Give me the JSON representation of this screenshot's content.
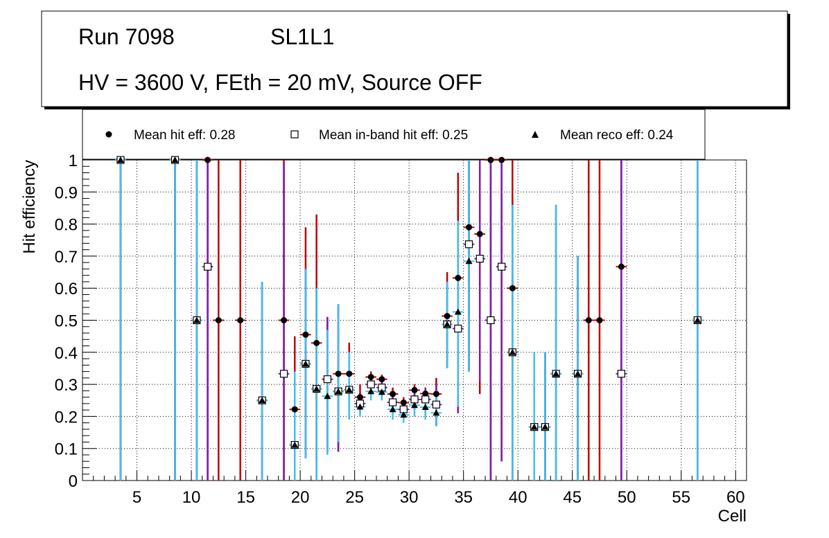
{
  "title_box": {
    "run_label": "Run 7098",
    "layer_label": "SL1L1",
    "conditions": "HV = 3600 V, FEth = 20 mV, Source OFF"
  },
  "legend": {
    "hit": "Mean hit  eff: 0.28",
    "inband": "Mean in-band hit eff: 0.25",
    "reco": "Mean reco eff: 0.24"
  },
  "colors": {
    "hit_error": "#c00000",
    "inband_error": "#7a1fb0",
    "reco_error": "#3dc1ef"
  },
  "chart_data": {
    "type": "scatter",
    "xlabel": "Cell",
    "ylabel": "Hit efficiency",
    "xlim": [
      0,
      61
    ],
    "ylim": [
      0,
      1
    ],
    "xticks": [
      5,
      10,
      15,
      20,
      25,
      30,
      35,
      40,
      45,
      50,
      55,
      60
    ],
    "yticks": [
      0,
      0.1,
      0.2,
      0.3,
      0.4,
      0.5,
      0.6,
      0.7,
      0.8,
      0.9,
      1
    ],
    "ytick_labels": [
      "0",
      "0.1",
      "0.2",
      "0.3",
      "0.4",
      "0.5",
      "0.6",
      "0.7",
      "0.8",
      "0.9",
      "1"
    ],
    "grid": true,
    "series": [
      {
        "name": "Mean hit  eff: 0.28",
        "marker": "circle",
        "points": [
          {
            "x": 3.5,
            "y": 1.0,
            "lo": 0.0,
            "hi": 1.0
          },
          {
            "x": 8.5,
            "y": 1.0,
            "lo": 0.0,
            "hi": 1.0
          },
          {
            "x": 10.5,
            "y": 0.5,
            "lo": 0.0,
            "hi": 1.0
          },
          {
            "x": 11.5,
            "y": 1.0,
            "lo": 0.0,
            "hi": 1.0
          },
          {
            "x": 12.5,
            "y": 0.5,
            "lo": 0.0,
            "hi": 1.0
          },
          {
            "x": 14.5,
            "y": 0.5,
            "lo": 0.0,
            "hi": 1.0
          },
          {
            "x": 16.5,
            "y": 0.25,
            "lo": 0.0,
            "hi": 0.62
          },
          {
            "x": 18.5,
            "y": 0.5,
            "lo": 0.0,
            "hi": 1.0
          },
          {
            "x": 19.5,
            "y": 0.222,
            "lo": 0.0,
            "hi": 0.45
          },
          {
            "x": 20.5,
            "y": 0.455,
            "lo": 0.07,
            "hi": 0.79
          },
          {
            "x": 21.5,
            "y": 0.429,
            "lo": 0.06,
            "hi": 0.83
          },
          {
            "x": 22.5,
            "y": 0.316,
            "lo": 0.09,
            "hi": 0.51
          },
          {
            "x": 23.5,
            "y": 0.333,
            "lo": 0.09,
            "hi": 0.55
          },
          {
            "x": 24.5,
            "y": 0.333,
            "lo": 0.19,
            "hi": 0.43
          },
          {
            "x": 25.5,
            "y": 0.26,
            "lo": 0.22,
            "hi": 0.3
          },
          {
            "x": 26.5,
            "y": 0.323,
            "lo": 0.28,
            "hi": 0.34
          },
          {
            "x": 27.5,
            "y": 0.316,
            "lo": 0.28,
            "hi": 0.33
          },
          {
            "x": 28.5,
            "y": 0.27,
            "lo": 0.22,
            "hi": 0.29
          },
          {
            "x": 29.5,
            "y": 0.243,
            "lo": 0.2,
            "hi": 0.26
          },
          {
            "x": 30.5,
            "y": 0.282,
            "lo": 0.23,
            "hi": 0.3
          },
          {
            "x": 31.5,
            "y": 0.271,
            "lo": 0.21,
            "hi": 0.29
          },
          {
            "x": 32.5,
            "y": 0.27,
            "lo": 0.17,
            "hi": 0.32
          },
          {
            "x": 33.5,
            "y": 0.513,
            "lo": 0.35,
            "hi": 0.65
          },
          {
            "x": 34.5,
            "y": 0.632,
            "lo": 0.21,
            "hi": 0.96
          },
          {
            "x": 35.5,
            "y": 0.79,
            "lo": 0.34,
            "hi": 1.0
          },
          {
            "x": 36.5,
            "y": 0.769,
            "lo": 0.27,
            "hi": 1.0
          },
          {
            "x": 37.5,
            "y": 1.0,
            "lo": 0.0,
            "hi": 1.0
          },
          {
            "x": 38.5,
            "y": 1.0,
            "lo": 0.06,
            "hi": 1.0
          },
          {
            "x": 39.5,
            "y": 0.6,
            "lo": 0.0,
            "hi": 1.0
          },
          {
            "x": 41.5,
            "y": 0.167,
            "lo": 0.0,
            "hi": 0.4
          },
          {
            "x": 42.5,
            "y": 0.167,
            "lo": 0.0,
            "hi": 0.4
          },
          {
            "x": 43.5,
            "y": 0.333,
            "lo": 0.0,
            "hi": 0.86
          },
          {
            "x": 45.5,
            "y": 0.333,
            "lo": 0.0,
            "hi": 0.7
          },
          {
            "x": 46.5,
            "y": 0.5,
            "lo": 0.0,
            "hi": 1.0
          },
          {
            "x": 47.5,
            "y": 0.5,
            "lo": 0.0,
            "hi": 1.0
          },
          {
            "x": 49.5,
            "y": 0.667,
            "lo": 0.0,
            "hi": 1.0
          },
          {
            "x": 56.5,
            "y": 0.5,
            "lo": 0.0,
            "hi": 1.0
          }
        ]
      },
      {
        "name": "Mean in-band hit eff: 0.25",
        "marker": "open-square",
        "points": [
          {
            "x": 3.5,
            "y": 1.0,
            "lo": 0.0,
            "hi": 1.0
          },
          {
            "x": 8.5,
            "y": 1.0,
            "lo": 0.0,
            "hi": 1.0
          },
          {
            "x": 10.5,
            "y": 0.5,
            "lo": 0.0,
            "hi": 1.0
          },
          {
            "x": 11.5,
            "y": 0.667,
            "lo": 0.0,
            "hi": 1.0
          },
          {
            "x": 16.5,
            "y": 0.25,
            "lo": 0.0,
            "hi": 0.62
          },
          {
            "x": 18.5,
            "y": 0.333,
            "lo": 0.0,
            "hi": 0.99
          },
          {
            "x": 19.5,
            "y": 0.111,
            "lo": 0.0,
            "hi": 0.34
          },
          {
            "x": 20.5,
            "y": 0.364,
            "lo": 0.07,
            "hi": 0.66
          },
          {
            "x": 21.5,
            "y": 0.286,
            "lo": 0.0,
            "hi": 0.6
          },
          {
            "x": 22.5,
            "y": 0.316,
            "lo": 0.09,
            "hi": 0.51
          },
          {
            "x": 23.5,
            "y": 0.278,
            "lo": 0.09,
            "hi": 0.55
          },
          {
            "x": 24.5,
            "y": 0.283,
            "lo": 0.19,
            "hi": 0.4
          },
          {
            "x": 25.5,
            "y": 0.24,
            "lo": 0.21,
            "hi": 0.27
          },
          {
            "x": 26.5,
            "y": 0.3,
            "lo": 0.27,
            "hi": 0.33
          },
          {
            "x": 27.5,
            "y": 0.29,
            "lo": 0.26,
            "hi": 0.31
          },
          {
            "x": 28.5,
            "y": 0.244,
            "lo": 0.21,
            "hi": 0.27
          },
          {
            "x": 29.5,
            "y": 0.222,
            "lo": 0.19,
            "hi": 0.25
          },
          {
            "x": 30.5,
            "y": 0.253,
            "lo": 0.22,
            "hi": 0.28
          },
          {
            "x": 31.5,
            "y": 0.253,
            "lo": 0.2,
            "hi": 0.29
          },
          {
            "x": 32.5,
            "y": 0.237,
            "lo": 0.17,
            "hi": 0.3
          },
          {
            "x": 33.5,
            "y": 0.487,
            "lo": 0.35,
            "hi": 0.62
          },
          {
            "x": 34.5,
            "y": 0.474,
            "lo": 0.21,
            "hi": 0.81
          },
          {
            "x": 35.5,
            "y": 0.737,
            "lo": 0.34,
            "hi": 1.0
          },
          {
            "x": 36.5,
            "y": 0.692,
            "lo": 0.31,
            "hi": 1.0
          },
          {
            "x": 37.5,
            "y": 0.5,
            "lo": 0.0,
            "hi": 1.0
          },
          {
            "x": 38.5,
            "y": 0.667,
            "lo": 0.06,
            "hi": 1.0
          },
          {
            "x": 39.5,
            "y": 0.4,
            "lo": 0.0,
            "hi": 0.86
          },
          {
            "x": 41.5,
            "y": 0.167,
            "lo": 0.0,
            "hi": 0.4
          },
          {
            "x": 42.5,
            "y": 0.167,
            "lo": 0.0,
            "hi": 0.4
          },
          {
            "x": 43.5,
            "y": 0.333,
            "lo": 0.0,
            "hi": 0.86
          },
          {
            "x": 45.5,
            "y": 0.333,
            "lo": 0.0,
            "hi": 0.7
          },
          {
            "x": 49.5,
            "y": 0.333,
            "lo": 0.0,
            "hi": 1.0
          },
          {
            "x": 56.5,
            "y": 0.5,
            "lo": 0.0,
            "hi": 1.0
          }
        ]
      },
      {
        "name": "Mean reco eff: 0.24",
        "marker": "triangle",
        "points": [
          {
            "x": 3.5,
            "y": 1.0,
            "lo": 0.0,
            "hi": 1.0
          },
          {
            "x": 8.5,
            "y": 1.0,
            "lo": 0.0,
            "hi": 1.0
          },
          {
            "x": 10.5,
            "y": 0.5,
            "lo": 0.0,
            "hi": 1.0
          },
          {
            "x": 16.5,
            "y": 0.25,
            "lo": 0.0,
            "hi": 0.62
          },
          {
            "x": 19.5,
            "y": 0.111,
            "lo": 0.0,
            "hi": 0.34
          },
          {
            "x": 20.5,
            "y": 0.364,
            "lo": 0.07,
            "hi": 0.66
          },
          {
            "x": 21.5,
            "y": 0.286,
            "lo": 0.0,
            "hi": 0.6
          },
          {
            "x": 22.5,
            "y": 0.263,
            "lo": 0.08,
            "hi": 0.47
          },
          {
            "x": 23.5,
            "y": 0.278,
            "lo": 0.12,
            "hi": 0.55
          },
          {
            "x": 24.5,
            "y": 0.283,
            "lo": 0.19,
            "hi": 0.4
          },
          {
            "x": 25.5,
            "y": 0.23,
            "lo": 0.2,
            "hi": 0.26
          },
          {
            "x": 26.5,
            "y": 0.278,
            "lo": 0.25,
            "hi": 0.31
          },
          {
            "x": 27.5,
            "y": 0.276,
            "lo": 0.25,
            "hi": 0.3
          },
          {
            "x": 28.5,
            "y": 0.222,
            "lo": 0.19,
            "hi": 0.25
          },
          {
            "x": 29.5,
            "y": 0.205,
            "lo": 0.18,
            "hi": 0.23
          },
          {
            "x": 30.5,
            "y": 0.235,
            "lo": 0.2,
            "hi": 0.26
          },
          {
            "x": 31.5,
            "y": 0.229,
            "lo": 0.19,
            "hi": 0.27
          },
          {
            "x": 32.5,
            "y": 0.211,
            "lo": 0.17,
            "hi": 0.28
          },
          {
            "x": 33.5,
            "y": 0.487,
            "lo": 0.35,
            "hi": 0.62
          },
          {
            "x": 34.5,
            "y": 0.526,
            "lo": 0.23,
            "hi": 0.81
          },
          {
            "x": 35.5,
            "y": 0.684,
            "lo": 0.34,
            "hi": 1.0
          },
          {
            "x": 39.5,
            "y": 0.4,
            "lo": 0.0,
            "hi": 0.86
          },
          {
            "x": 41.5,
            "y": 0.167,
            "lo": 0.0,
            "hi": 0.4
          },
          {
            "x": 42.5,
            "y": 0.167,
            "lo": 0.0,
            "hi": 0.4
          },
          {
            "x": 43.5,
            "y": 0.333,
            "lo": 0.0,
            "hi": 0.86
          },
          {
            "x": 45.5,
            "y": 0.333,
            "lo": 0.0,
            "hi": 0.7
          },
          {
            "x": 56.5,
            "y": 0.5,
            "lo": 0.0,
            "hi": 1.0
          }
        ]
      }
    ]
  }
}
